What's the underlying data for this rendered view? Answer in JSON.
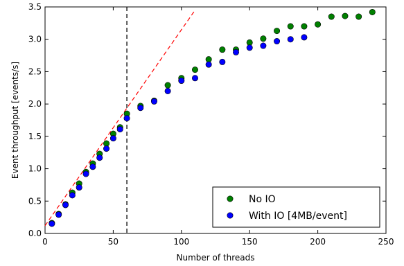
{
  "chart_data": {
    "type": "scatter",
    "xlabel": "Number of threads",
    "ylabel": "Event throughput [events/s]",
    "xlim": [
      0,
      250
    ],
    "ylim": [
      0.0,
      3.5
    ],
    "xticks": [
      "0",
      "50",
      "100",
      "150",
      "200",
      "250"
    ],
    "yticks": [
      "0.0",
      "0.5",
      "1.0",
      "1.5",
      "2.0",
      "2.5",
      "3.0",
      "3.5"
    ],
    "grid": false,
    "legend_position": "bottom-right",
    "series": [
      {
        "name": "No IO",
        "color": "#008000",
        "x": [
          5,
          10,
          15,
          20,
          25,
          30,
          35,
          40,
          45,
          50,
          55,
          60,
          70,
          80,
          90,
          100,
          110,
          120,
          130,
          140,
          150,
          160,
          170,
          180,
          190,
          200,
          210,
          220,
          230,
          240
        ],
        "y": [
          0.16,
          0.3,
          0.45,
          0.63,
          0.77,
          0.95,
          1.08,
          1.23,
          1.39,
          1.54,
          1.64,
          1.85,
          1.97,
          2.05,
          2.29,
          2.4,
          2.53,
          2.69,
          2.84,
          2.84,
          2.95,
          3.01,
          3.13,
          3.2,
          3.2,
          3.23,
          3.35,
          3.36,
          3.35,
          3.42
        ]
      },
      {
        "name": "With IO [4MB/event]",
        "color": "#0000ff",
        "x": [
          5,
          10,
          15,
          20,
          25,
          30,
          35,
          40,
          45,
          50,
          55,
          60,
          70,
          80,
          90,
          100,
          110,
          120,
          130,
          140,
          150,
          160,
          170,
          180,
          190
        ],
        "y": [
          0.15,
          0.29,
          0.44,
          0.59,
          0.71,
          0.92,
          1.03,
          1.17,
          1.31,
          1.47,
          1.61,
          1.78,
          1.94,
          2.04,
          2.2,
          2.36,
          2.4,
          2.61,
          2.65,
          2.8,
          2.87,
          2.9,
          2.97,
          3.0,
          3.03
        ]
      }
    ],
    "reference_lines": [
      {
        "kind": "linear-fit",
        "color": "#ff0000",
        "style": "dashed",
        "x": [
          0,
          110
        ],
        "y": [
          0.12,
          3.45
        ]
      },
      {
        "kind": "vertical",
        "color": "#000000",
        "style": "dashed",
        "x": 60
      }
    ]
  }
}
